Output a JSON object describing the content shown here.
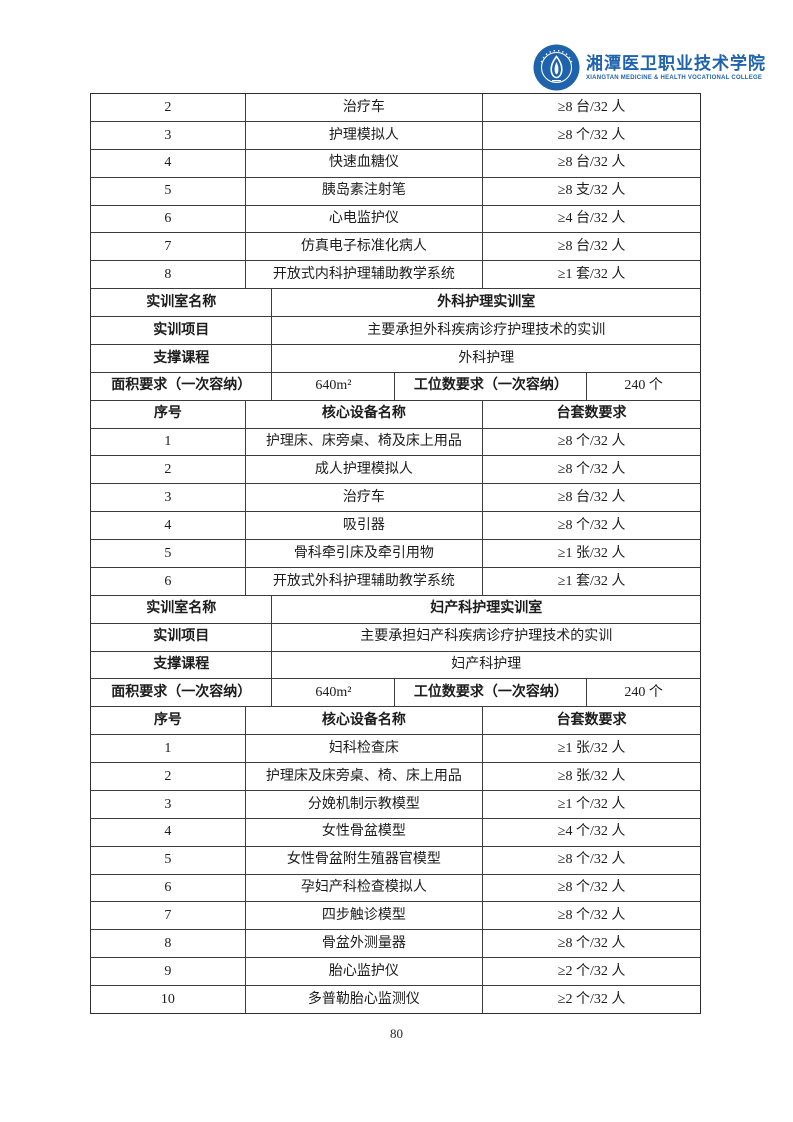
{
  "logo": {
    "cn_name": "湘潭医卫职业技术学院",
    "en_name": "XIANGTAN MEDICINE & HEALTH VOCATIONAL COLLEGE",
    "brand_color": "#1e63ac"
  },
  "page": {
    "number": "80"
  },
  "table": {
    "rows": [
      {
        "type": "equip",
        "cells": [
          "2",
          "治疗车",
          "≥8 台/32 人"
        ]
      },
      {
        "type": "equip",
        "cells": [
          "3",
          "护理模拟人",
          "≥8 个/32 人"
        ]
      },
      {
        "type": "equip",
        "cells": [
          "4",
          "快速血糖仪",
          "≥8 台/32 人"
        ]
      },
      {
        "type": "equip",
        "cells": [
          "5",
          "胰岛素注射笔",
          "≥8 支/32 人"
        ]
      },
      {
        "type": "equip",
        "cells": [
          "6",
          "心电监护仪",
          "≥4 台/32 人"
        ]
      },
      {
        "type": "equip",
        "cells": [
          "7",
          "仿真电子标准化病人",
          "≥8 台/32 人"
        ]
      },
      {
        "type": "equip",
        "cells": [
          "8",
          "开放式内科护理辅助教学系统",
          "≥1 套/32 人"
        ]
      },
      {
        "type": "room",
        "cells": [
          "实训室名称",
          "外科护理实训室"
        ]
      },
      {
        "type": "kv",
        "cells": [
          "实训项目",
          "主要承担外科疾病诊疗护理技术的实训"
        ]
      },
      {
        "type": "kv",
        "cells": [
          "支撑课程",
          "外科护理"
        ]
      },
      {
        "type": "kv4",
        "cells": [
          "面积要求（一次容纳）",
          "640m²",
          "工位数要求（一次容纳）",
          "240 个"
        ]
      },
      {
        "type": "head3",
        "cells": [
          "序号",
          "核心设备名称",
          "台套数要求"
        ]
      },
      {
        "type": "equip",
        "cells": [
          "1",
          "护理床、床旁桌、椅及床上用品",
          "≥8 个/32 人"
        ]
      },
      {
        "type": "equip",
        "cells": [
          "2",
          "成人护理模拟人",
          "≥8 个/32 人"
        ]
      },
      {
        "type": "equip",
        "cells": [
          "3",
          "治疗车",
          "≥8 台/32 人"
        ]
      },
      {
        "type": "equip",
        "cells": [
          "4",
          "吸引器",
          "≥8 个/32 人"
        ]
      },
      {
        "type": "equip",
        "cells": [
          "5",
          "骨科牵引床及牵引用物",
          "≥1 张/32 人"
        ]
      },
      {
        "type": "equip",
        "cells": [
          "6",
          "开放式外科护理辅助教学系统",
          "≥1 套/32 人"
        ]
      },
      {
        "type": "room",
        "cells": [
          "实训室名称",
          "妇产科护理实训室"
        ]
      },
      {
        "type": "kv",
        "cells": [
          "实训项目",
          "主要承担妇产科疾病诊疗护理技术的实训"
        ]
      },
      {
        "type": "kv",
        "cells": [
          "支撑课程",
          "妇产科护理"
        ]
      },
      {
        "type": "kv4",
        "cells": [
          "面积要求（一次容纳）",
          "640m²",
          "工位数要求（一次容纳）",
          "240 个"
        ]
      },
      {
        "type": "head3",
        "cells": [
          "序号",
          "核心设备名称",
          "台套数要求"
        ]
      },
      {
        "type": "equip",
        "cells": [
          "1",
          "妇科检查床",
          "≥1 张/32 人"
        ]
      },
      {
        "type": "equip",
        "cells": [
          "2",
          "护理床及床旁桌、椅、床上用品",
          "≥8 张/32 人"
        ]
      },
      {
        "type": "equip",
        "cells": [
          "3",
          "分娩机制示教模型",
          "≥1 个/32 人"
        ]
      },
      {
        "type": "equip",
        "cells": [
          "4",
          "女性骨盆模型",
          "≥4 个/32 人"
        ]
      },
      {
        "type": "equip",
        "cells": [
          "5",
          "女性骨盆附生殖器官模型",
          "≥8 个/32 人"
        ]
      },
      {
        "type": "equip",
        "cells": [
          "6",
          "孕妇产科检查模拟人",
          "≥8 个/32 人"
        ]
      },
      {
        "type": "equip",
        "cells": [
          "7",
          "四步触诊模型",
          "≥8 个/32 人"
        ]
      },
      {
        "type": "equip",
        "cells": [
          "8",
          "骨盆外测量器",
          "≥8 个/32 人"
        ]
      },
      {
        "type": "equip",
        "cells": [
          "9",
          "胎心监护仪",
          "≥2 个/32 人"
        ]
      },
      {
        "type": "equip",
        "cells": [
          "10",
          "多普勒胎心监测仪",
          "≥2 个/32 人"
        ]
      }
    ]
  }
}
